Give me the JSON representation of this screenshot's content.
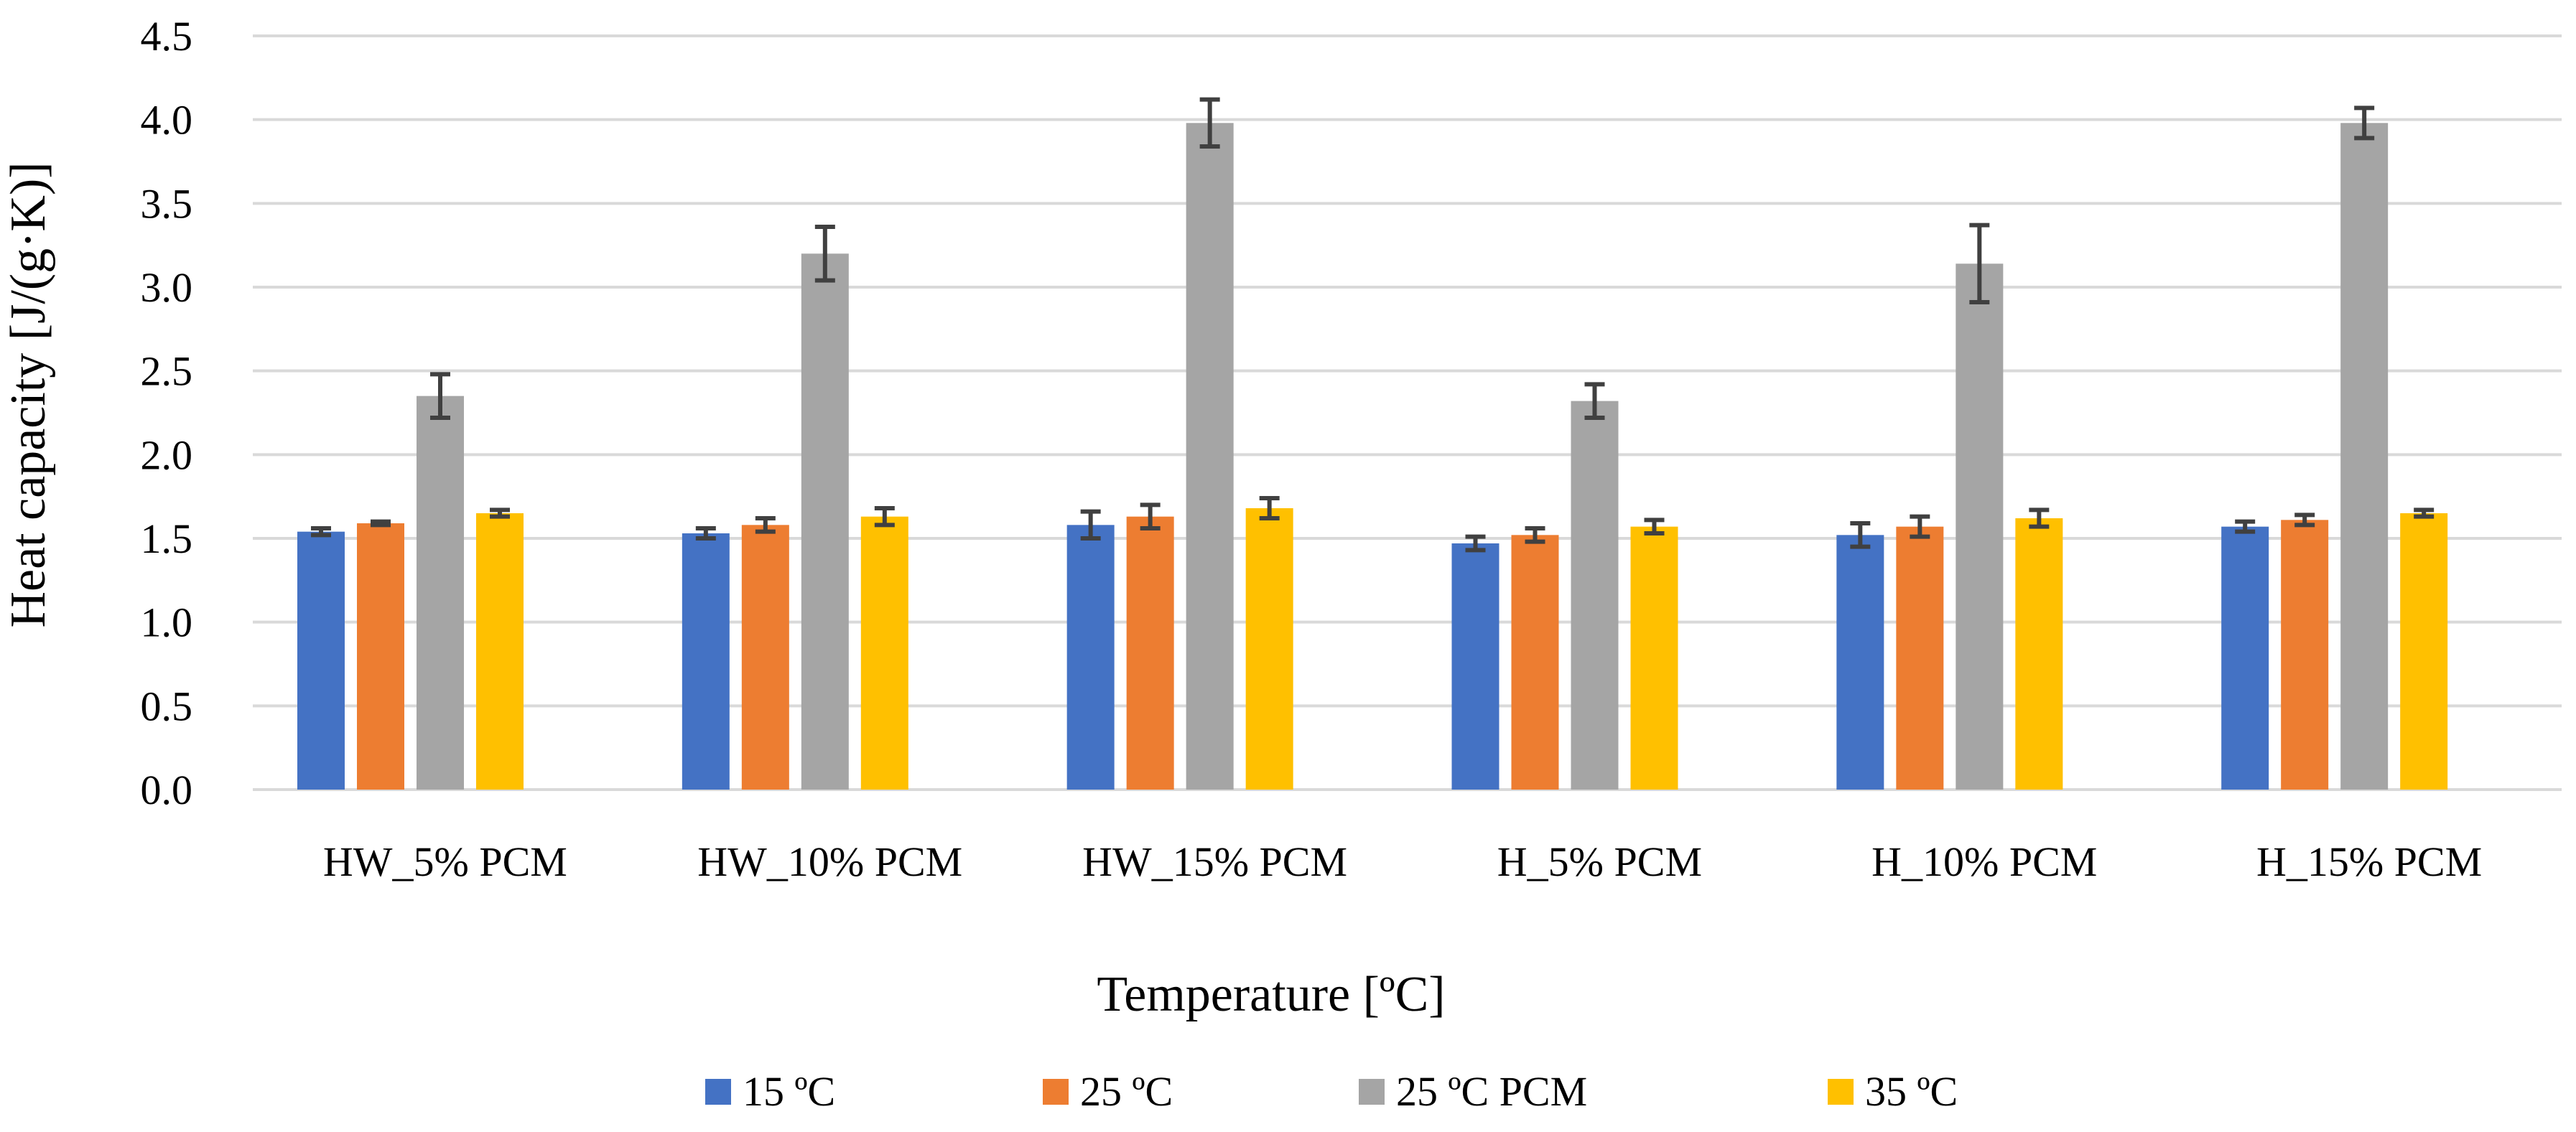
{
  "chart_data": {
    "type": "bar",
    "title": "",
    "xlabel": "Temperature [ºC]",
    "ylabel": "Heat capacity [J/(g·K)]",
    "ylim": [
      0,
      4.5
    ],
    "yticks": [
      "0.0",
      "0.5",
      "1.0",
      "1.5",
      "2.0",
      "2.5",
      "3.0",
      "3.5",
      "4.0",
      "4.5"
    ],
    "grid": "horizontal",
    "legend_position": "bottom",
    "categories": [
      "HW_5% PCM",
      "HW_10% PCM",
      "HW_15% PCM",
      "H_5% PCM",
      "H_10% PCM",
      "H_15% PCM"
    ],
    "series": [
      {
        "name": "15 ºC",
        "color": "#4472C4",
        "values": [
          1.54,
          1.53,
          1.58,
          1.47,
          1.52,
          1.57
        ],
        "errors": [
          0.02,
          0.03,
          0.08,
          0.04,
          0.07,
          0.03
        ]
      },
      {
        "name": "25 ºC",
        "color": "#ED7D31",
        "values": [
          1.59,
          1.58,
          1.63,
          1.52,
          1.57,
          1.61
        ],
        "errors": [
          0.01,
          0.04,
          0.07,
          0.04,
          0.06,
          0.03
        ]
      },
      {
        "name": "25 ºC PCM",
        "color": "#A5A5A5",
        "values": [
          2.35,
          3.2,
          3.98,
          2.32,
          3.14,
          3.98
        ],
        "errors": [
          0.13,
          0.16,
          0.14,
          0.1,
          0.23,
          0.09
        ]
      },
      {
        "name": "35 ºC",
        "color": "#FFC000",
        "values": [
          1.65,
          1.63,
          1.68,
          1.57,
          1.62,
          1.65
        ],
        "errors": [
          0.02,
          0.05,
          0.06,
          0.04,
          0.05,
          0.02
        ]
      }
    ],
    "error_bar_color": "#404040",
    "grid_color": "#D9D9D9"
  }
}
